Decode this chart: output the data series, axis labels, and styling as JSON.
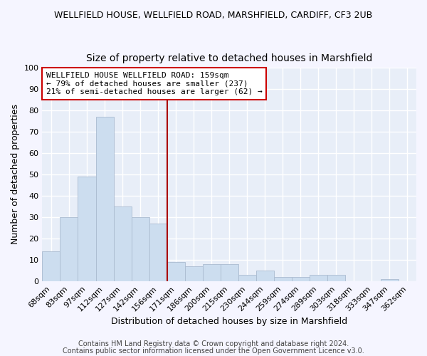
{
  "title1": "WELLFIELD HOUSE, WELLFIELD ROAD, MARSHFIELD, CARDIFF, CF3 2UB",
  "title2": "Size of property relative to detached houses in Marshfield",
  "xlabel": "Distribution of detached houses by size in Marshfield",
  "ylabel": "Number of detached properties",
  "categories": [
    "68sqm",
    "83sqm",
    "97sqm",
    "112sqm",
    "127sqm",
    "142sqm",
    "156sqm",
    "171sqm",
    "186sqm",
    "200sqm",
    "215sqm",
    "230sqm",
    "244sqm",
    "259sqm",
    "274sqm",
    "289sqm",
    "303sqm",
    "318sqm",
    "333sqm",
    "347sqm",
    "362sqm"
  ],
  "values": [
    14,
    30,
    49,
    77,
    35,
    30,
    27,
    9,
    7,
    8,
    8,
    3,
    5,
    2,
    2,
    3,
    3,
    0,
    0,
    1,
    0
  ],
  "bar_color": "#ccddef",
  "bar_edge_color": "#aabbd0",
  "red_line_index": 6,
  "red_line_color": "#aa0000",
  "ylim": [
    0,
    100
  ],
  "annotation_line1": "WELLFIELD HOUSE WELLFIELD ROAD: 159sqm",
  "annotation_line2": "← 79% of detached houses are smaller (237)",
  "annotation_line3": "21% of semi-detached houses are larger (62) →",
  "annotation_box_color": "#ffffff",
  "annotation_box_edge_color": "#cc0000",
  "footer1": "Contains HM Land Registry data © Crown copyright and database right 2024.",
  "footer2": "Contains public sector information licensed under the Open Government Licence v3.0.",
  "fig_background_color": "#f5f5ff",
  "plot_background_color": "#e8eef8",
  "grid_color": "#ffffff",
  "title1_fontsize": 9,
  "title2_fontsize": 10,
  "tick_fontsize": 8,
  "ylabel_fontsize": 9,
  "xlabel_fontsize": 9,
  "annotation_fontsize": 8,
  "footer_fontsize": 7
}
